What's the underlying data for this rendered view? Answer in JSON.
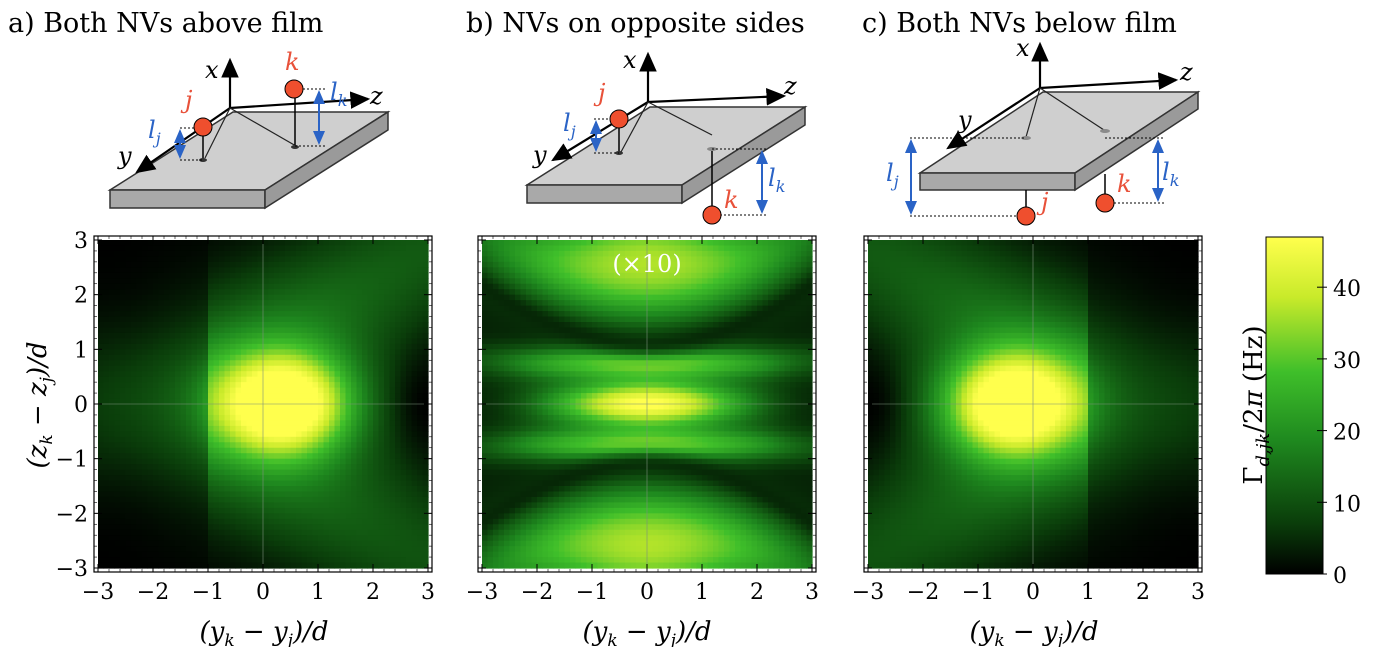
{
  "chart_data": [
    {
      "type": "heatmap",
      "title": "a) Both NVs above film",
      "xlabel": "(y_k − y_j)/d",
      "ylabel": "(z_k − z_j)/d",
      "xlim": [
        -3,
        3
      ],
      "ylim": [
        -3,
        3
      ],
      "xticks": [
        "−3",
        "−2",
        "−1",
        "0",
        "1",
        "2",
        "3"
      ],
      "yticks": [
        "−3",
        "−2",
        "−1",
        "0",
        "1",
        "2",
        "3"
      ],
      "peak": {
        "x": 0.4,
        "y": 0,
        "value": 46
      },
      "colormap": [
        "#000000",
        "#0a3d0a",
        "#1f8a1f",
        "#3fbf2a",
        "#c8ea2a",
        "#ffff4d"
      ]
    },
    {
      "type": "heatmap",
      "title": "b) NVs on opposite sides",
      "annotation": "(×10)",
      "xlabel": "(y_k − y_j)/d",
      "ylabel": "",
      "xlim": [
        -3,
        3
      ],
      "ylim": [
        -3,
        3
      ],
      "xticks": [
        "−3",
        "−2",
        "−1",
        "0",
        "1",
        "2",
        "3"
      ],
      "peak": {
        "x": 0,
        "y": 0,
        "value": 44
      }
    },
    {
      "type": "heatmap",
      "title": "c) Both NVs below film",
      "xlabel": "(y_k − y_j)/d",
      "ylabel": "",
      "xlim": [
        -3,
        3
      ],
      "ylim": [
        -3,
        3
      ],
      "xticks": [
        "−3",
        "−2",
        "−1",
        "0",
        "1",
        "2",
        "3"
      ],
      "peak": {
        "x": -0.4,
        "y": 0,
        "value": 46
      }
    }
  ],
  "colorbar": {
    "label": "Γ_{d,jk}/2π (Hz)",
    "range": [
      0,
      47
    ],
    "ticks": [
      "0",
      "10",
      "20",
      "30",
      "40"
    ],
    "tick_values": [
      0,
      10,
      20,
      30,
      40
    ]
  },
  "diagrams": {
    "axis_x": "x",
    "axis_y": "y",
    "axis_z": "z",
    "nv_j": "j",
    "nv_k": "k",
    "dist_j": "l",
    "dist_j_sub": "j",
    "dist_k": "l",
    "dist_k_sub": "k"
  }
}
